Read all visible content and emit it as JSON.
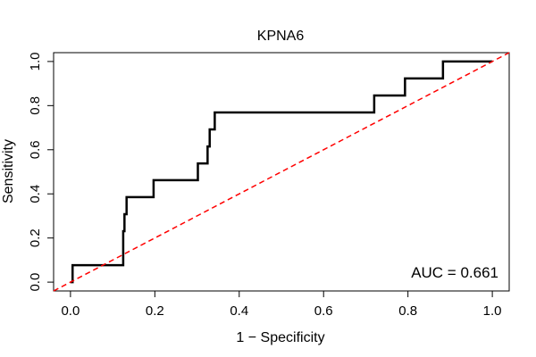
{
  "chart_data": {
    "type": "line",
    "title": "KPNA6",
    "xlabel": "1 − Specificity",
    "ylabel": "Sensitivity",
    "xlim": [
      -0.04,
      1.04
    ],
    "ylim": [
      -0.04,
      1.04
    ],
    "grid": false,
    "x_ticks": [
      0.0,
      0.2,
      0.4,
      0.6,
      0.8,
      1.0
    ],
    "x_tick_labels": [
      "0.0",
      "0.2",
      "0.4",
      "0.6",
      "0.8",
      "1.0"
    ],
    "y_ticks": [
      0.0,
      0.2,
      0.4,
      0.6,
      0.8,
      1.0
    ],
    "y_tick_labels": [
      "0.0",
      "0.2",
      "0.4",
      "0.6",
      "0.8",
      "1.0"
    ],
    "series": [
      {
        "style": "step",
        "color": "#000000",
        "x": [
          0.0,
          0.005,
          0.005,
          0.125,
          0.125,
          0.128,
          0.128,
          0.133,
          0.133,
          0.197,
          0.197,
          0.302,
          0.302,
          0.325,
          0.325,
          0.33,
          0.33,
          0.342,
          0.342,
          0.72,
          0.72,
          0.793,
          0.793,
          0.883,
          0.883,
          1.0
        ],
        "y": [
          0.0,
          0.0,
          0.077,
          0.077,
          0.231,
          0.231,
          0.308,
          0.308,
          0.385,
          0.385,
          0.462,
          0.462,
          0.538,
          0.538,
          0.615,
          0.615,
          0.692,
          0.692,
          0.769,
          0.769,
          0.846,
          0.846,
          0.923,
          0.923,
          1.0,
          1.0
        ]
      },
      {
        "style": "dashed",
        "color": "#ff0000",
        "x": [
          -0.04,
          1.04
        ],
        "y": [
          -0.04,
          1.04
        ]
      }
    ],
    "annotations": [
      {
        "text": "AUC = 0.661",
        "placement": "bottom-right"
      }
    ]
  }
}
